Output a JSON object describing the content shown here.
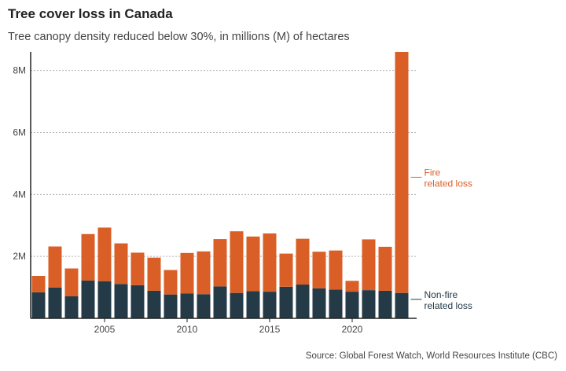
{
  "chart_data": {
    "type": "bar",
    "stacked": true,
    "title": "Tree cover loss in Canada",
    "subtitle": "Tree canopy density reduced below 30%, in millions (M) of hectares",
    "source": "Source: Global Forest Watch, World Resources Institute (CBC)",
    "x": [
      2001,
      2002,
      2003,
      2004,
      2005,
      2006,
      2007,
      2008,
      2009,
      2010,
      2011,
      2012,
      2013,
      2014,
      2015,
      2016,
      2017,
      2018,
      2019,
      2020,
      2021,
      2022,
      2023
    ],
    "x_ticks": [
      2005,
      2010,
      2015,
      2020
    ],
    "x_tick_labels": [
      "2005",
      "2010",
      "2015",
      "2020"
    ],
    "y_ticks": [
      2,
      4,
      6,
      8
    ],
    "y_tick_labels": [
      "2M",
      "4M",
      "6M",
      "8M"
    ],
    "ylim": [
      0,
      8.6
    ],
    "grid": true,
    "series": [
      {
        "name": "Non-fire related loss",
        "label_lines": [
          "Non-fire",
          "related loss"
        ],
        "color": "#243a47",
        "values": [
          0.84,
          0.99,
          0.71,
          1.22,
          1.2,
          1.11,
          1.07,
          0.89,
          0.77,
          0.8,
          0.78,
          1.03,
          0.82,
          0.88,
          0.86,
          1.02,
          1.09,
          0.97,
          0.93,
          0.86,
          0.91,
          0.89,
          0.82
        ]
      },
      {
        "name": "Fire related loss",
        "label_lines": [
          "Fire",
          "related loss"
        ],
        "color": "#d95f27",
        "values": [
          0.53,
          1.33,
          0.9,
          1.5,
          1.73,
          1.31,
          1.05,
          1.07,
          0.79,
          1.31,
          1.38,
          1.53,
          1.99,
          1.76,
          1.88,
          1.07,
          1.48,
          1.18,
          1.26,
          0.35,
          1.64,
          1.42,
          7.78
        ]
      }
    ]
  }
}
